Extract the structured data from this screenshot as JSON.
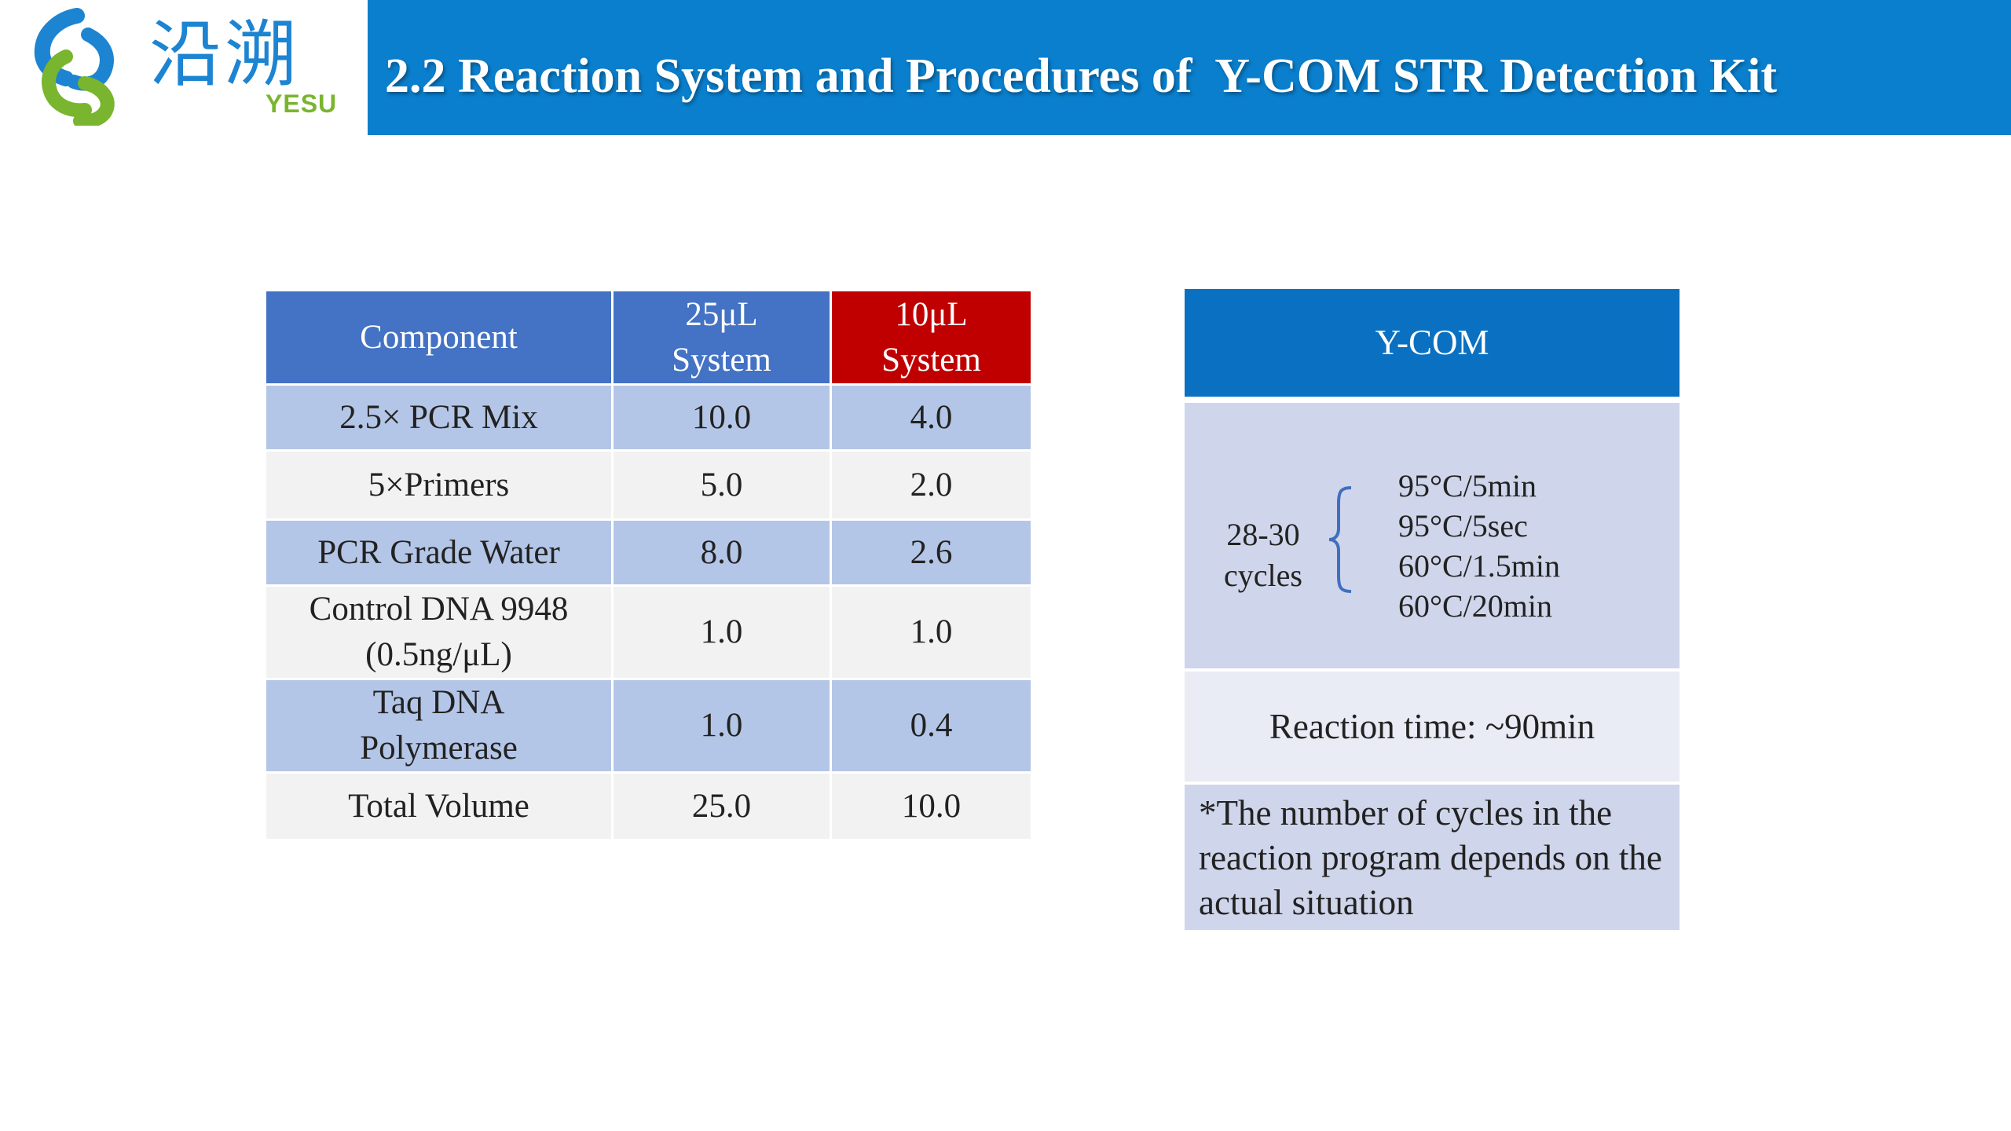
{
  "logo": {
    "chinese": "沿溯",
    "english": "YESU"
  },
  "header": {
    "title": "2.2 Reaction System and Procedures of  Y-COM STR Detection Kit"
  },
  "components_table": {
    "headers": {
      "component": "Component",
      "col25": [
        "25μL",
        "System"
      ],
      "col10": [
        "10μL",
        "System"
      ]
    },
    "rows": [
      {
        "component": [
          "2.5× PCR Mix"
        ],
        "v25": "10.0",
        "v10": "4.0"
      },
      {
        "component": [
          "5×Primers"
        ],
        "v25": "5.0",
        "v10": "2.0"
      },
      {
        "component": [
          "PCR Grade Water"
        ],
        "v25": "8.0",
        "v10": "2.6"
      },
      {
        "component": [
          "Control DNA 9948",
          "(0.5ng/μL)"
        ],
        "v25": "1.0",
        "v10": "1.0"
      },
      {
        "component": [
          "Taq DNA",
          "Polymerase"
        ],
        "v25": "1.0",
        "v10": "0.4"
      },
      {
        "component": [
          "Total Volume"
        ],
        "v25": "25.0",
        "v10": "10.0"
      }
    ]
  },
  "program": {
    "title": "Y-COM",
    "cycles_label": [
      "28-30",
      "cycles"
    ],
    "steps": [
      "95°C/5min",
      "95°C/5sec",
      "60°C/1.5min",
      "60°C/20min"
    ],
    "reaction_time": "Reaction time: ~90min",
    "note": "*The number of cycles in the reaction program depends on the actual situation"
  },
  "colors": {
    "title_bar": "#0a7fcd",
    "logo_blue": "#1d84d2",
    "logo_green": "#79b52e",
    "header_blue": "#4472c4",
    "header_red": "#c00000",
    "row_blue": "#b4c6e7",
    "row_light": "#f2f2f2",
    "panel_head": "#0a70c1",
    "panel_body": "#cfd5ea",
    "panel_time": "#e9ebf5"
  }
}
